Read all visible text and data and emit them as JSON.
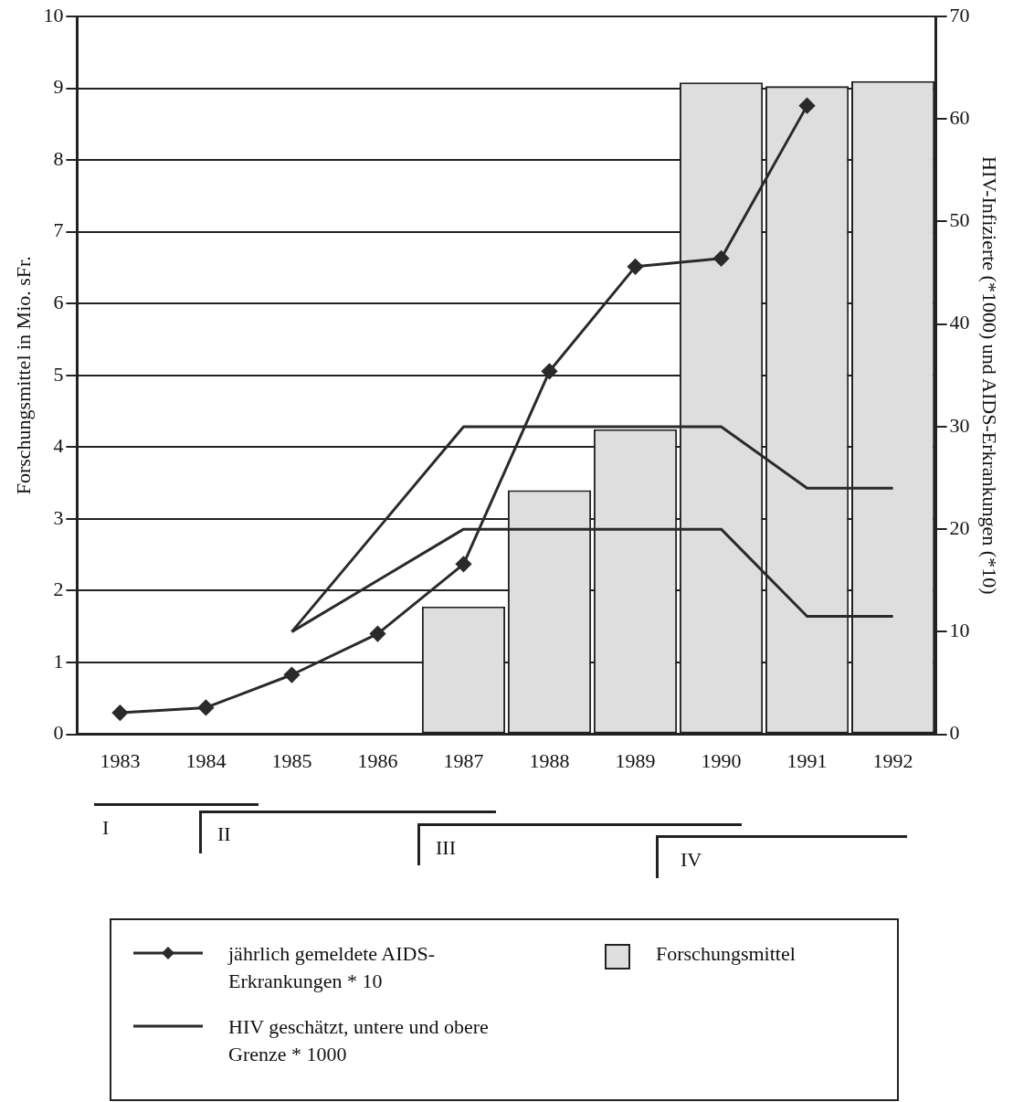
{
  "chart_data": {
    "type": "bar",
    "ylabel": "Forschungsmittel in Mio. sFr.",
    "y2label": "HIV-Infizierte (*1000) und AIDS-Erkrankungen (*10)",
    "categories": [
      "1983",
      "1984",
      "1985",
      "1986",
      "1987",
      "1988",
      "1989",
      "1990",
      "1991",
      "1992"
    ],
    "series": [
      {
        "name": "Forschungsmittel",
        "axis": "y",
        "color": "#dedede",
        "values": [
          null,
          null,
          null,
          null,
          1.78,
          3.4,
          4.25,
          9.08,
          9.03,
          9.1
        ]
      },
      {
        "name": "jährlich gemeldete AIDS-Erkrankungen * 10",
        "type": "line",
        "axis": "y2",
        "marker": "diamond",
        "color": "#2a2a2a",
        "values": [
          2.1,
          2.6,
          5.8,
          9.8,
          16.6,
          35.4,
          45.6,
          46.4,
          61.3,
          null
        ]
      },
      {
        "name": "HIV geschätzt, untere und obere Grenze * 1000",
        "type": "line",
        "axis": "y2",
        "marker": "none",
        "color": "#2a2a2a",
        "values": [
          null,
          null,
          10,
          15,
          20,
          20,
          20,
          20,
          11.5,
          11.5
        ]
      },
      {
        "type": "line",
        "axis": "y2",
        "marker": "none",
        "color": "#2a2a2a",
        "values": [
          null,
          null,
          10,
          20,
          30,
          30,
          30,
          30,
          24,
          24
        ]
      }
    ],
    "ylim": [
      0,
      10
    ],
    "yticks": [
      0,
      1,
      2,
      3,
      4,
      5,
      6,
      7,
      8,
      9,
      10
    ],
    "y2lim": [
      0,
      70
    ],
    "y2ticks": [
      0,
      10,
      20,
      30,
      40,
      50,
      60,
      70
    ],
    "grid": "y",
    "legend": "bottom",
    "annotations": [
      "I",
      "II",
      "III",
      "IV"
    ]
  }
}
